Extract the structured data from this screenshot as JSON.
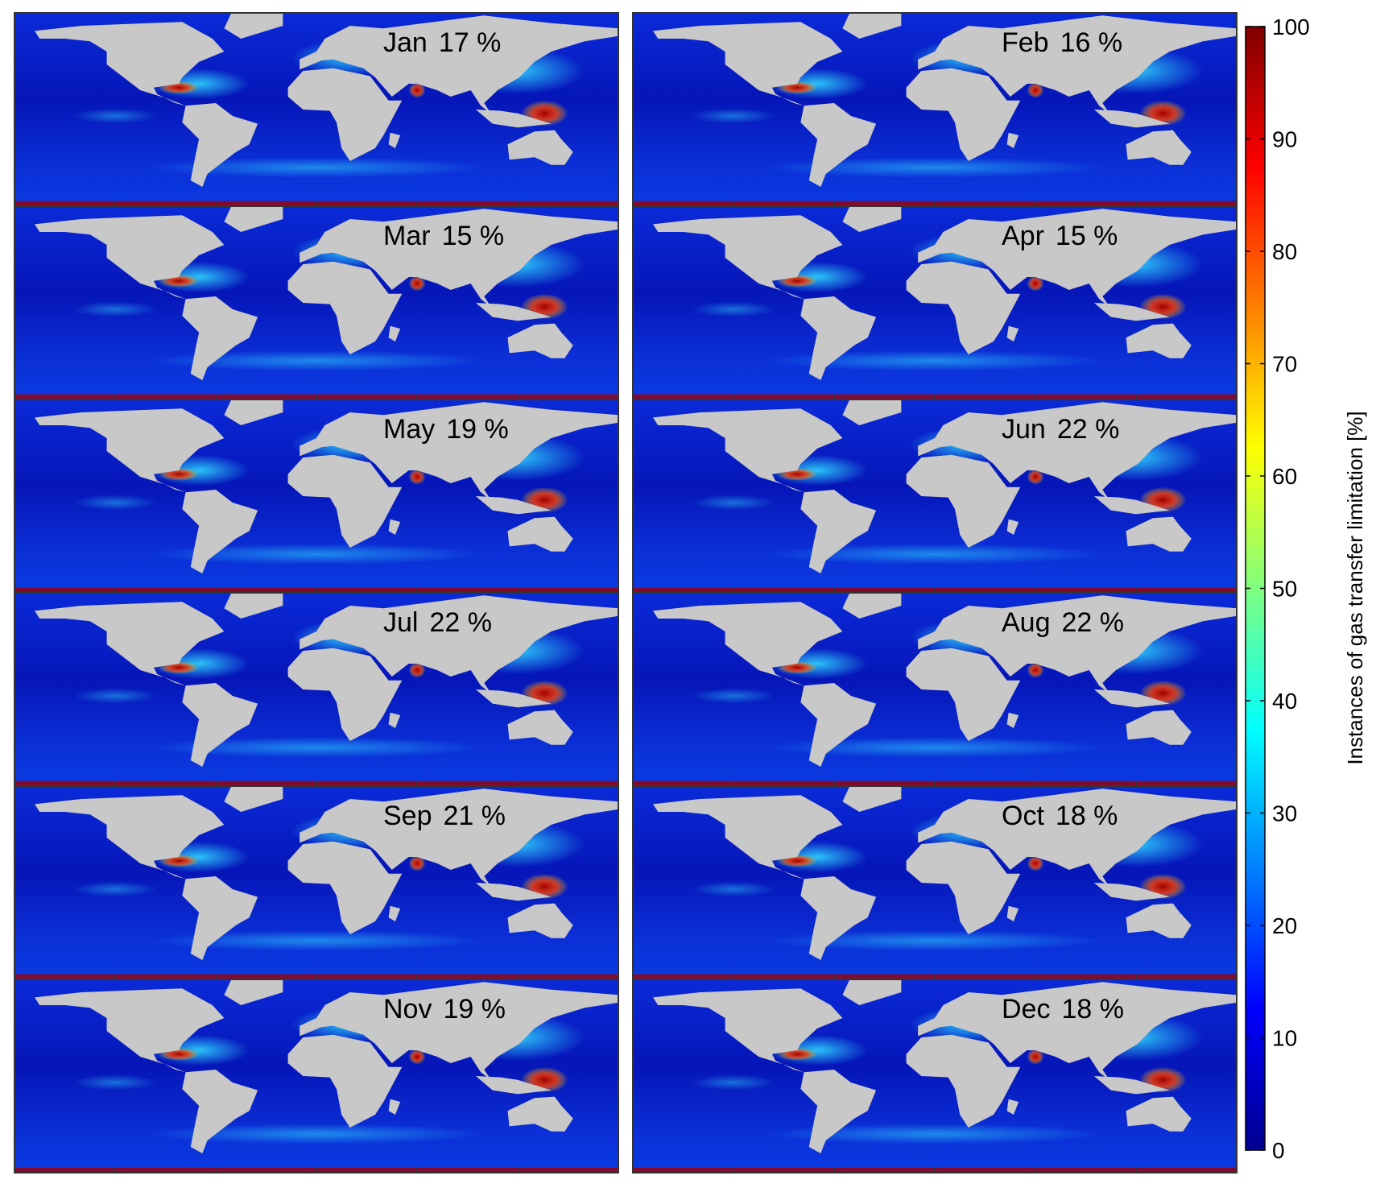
{
  "panels": [
    {
      "month": "Jan",
      "share": "17 %"
    },
    {
      "month": "Feb",
      "share": "16 %"
    },
    {
      "month": "Mar",
      "share": "15 %"
    },
    {
      "month": "Apr",
      "share": "15 %"
    },
    {
      "month": "May",
      "share": "19 %"
    },
    {
      "month": "Jun",
      "share": "22 %"
    },
    {
      "month": "Jul",
      "share": "22 %"
    },
    {
      "month": "Aug",
      "share": "22 %"
    },
    {
      "month": "Sep",
      "share": "21 %"
    },
    {
      "month": "Oct",
      "share": "18 %"
    },
    {
      "month": "Nov",
      "share": "19 %"
    },
    {
      "month": "Dec",
      "share": "18 %"
    }
  ],
  "colorbar": {
    "label": "Instances of gas transfer limitation [%]",
    "lim": [
      0,
      100
    ],
    "ticks": [
      0,
      10,
      20,
      30,
      40,
      50,
      60,
      70,
      80,
      90,
      100
    ],
    "colormap": "jet"
  }
}
